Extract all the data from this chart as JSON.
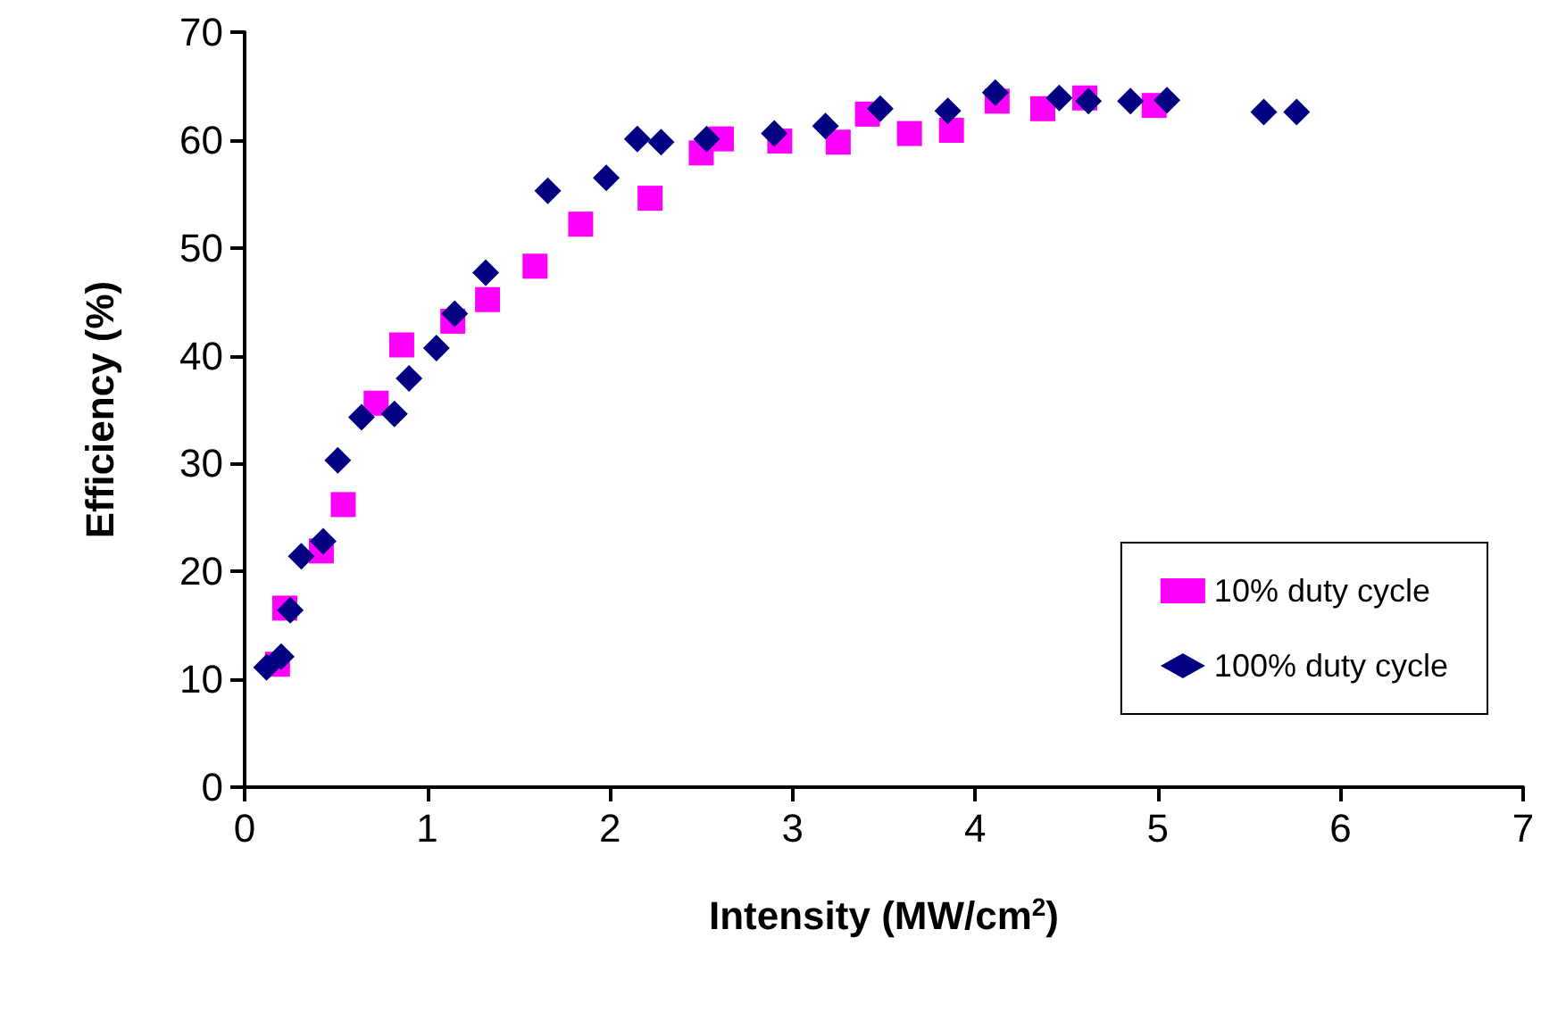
{
  "chart_data": {
    "type": "scatter",
    "xlabel": "Intensity (MW/cm$^{2}$)",
    "ylabel": "Efficiency (%)",
    "xlim": [
      0,
      7
    ],
    "xticks": [
      0,
      1,
      2,
      3,
      4,
      5,
      6,
      7
    ],
    "ylim": [
      0,
      70
    ],
    "yticks": [
      0,
      10,
      20,
      30,
      40,
      50,
      60,
      70
    ],
    "grid": false,
    "legend": "bottom right",
    "series": [
      {
        "name": "10% duty cycle",
        "color": "#ff00ff",
        "marker": "square",
        "x": [
          0.18,
          0.22,
          0.42,
          0.54,
          0.72,
          0.86,
          1.14,
          1.33,
          1.59,
          1.84,
          2.22,
          2.5,
          2.61,
          2.93,
          3.25,
          3.41,
          3.64,
          3.87,
          4.12,
          4.37,
          4.6,
          4.98
        ],
        "values": [
          11.4,
          16.6,
          21.9,
          26.2,
          35.6,
          41,
          43.2,
          45.2,
          48.3,
          52.2,
          54.6,
          58.8,
          60.1,
          59.9,
          59.8,
          62.4,
          60.6,
          60.9,
          63.6,
          62.9,
          63.9,
          63.2
        ]
      },
      {
        "name": "100% duty cycle",
        "color": "#000080",
        "marker": "diamond",
        "x": [
          0.12,
          0.2,
          0.25,
          0.31,
          0.43,
          0.51,
          0.64,
          0.82,
          0.9,
          1.05,
          1.15,
          1.32,
          1.66,
          1.98,
          2.15,
          2.28,
          2.53,
          2.9,
          3.18,
          3.48,
          3.85,
          4.11,
          4.46,
          4.62,
          4.85,
          5.05,
          5.58,
          5.76
        ],
        "values": [
          11.1,
          12.1,
          16.4,
          21.4,
          22.8,
          30.3,
          34.3,
          34.6,
          37.9,
          40.7,
          43.9,
          47.7,
          55.3,
          56.5,
          60.1,
          59.8,
          60.1,
          60.6,
          61.3,
          62.9,
          62.7,
          64.4,
          63.9,
          63.6,
          63.6,
          63.7,
          62.6,
          62.6
        ]
      }
    ]
  }
}
